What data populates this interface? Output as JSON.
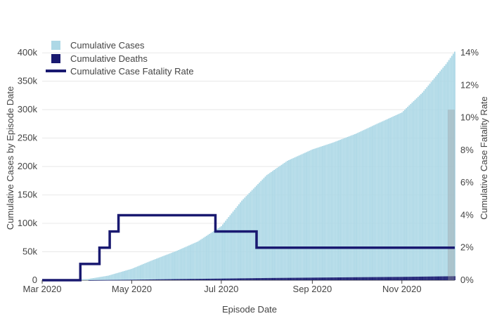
{
  "chart_data": {
    "type": "bar",
    "xlabel": "Episode Date",
    "ylabel_left": "Cumulative Cases by Episode Date",
    "ylabel_right": "Cumulative Case Fatality Rate",
    "x_range": [
      "2020-03-01",
      "2020-12-07"
    ],
    "x_ticks": [
      {
        "date": "2020-03-01",
        "label": "Mar 2020"
      },
      {
        "date": "2020-05-01",
        "label": "May 2020"
      },
      {
        "date": "2020-07-01",
        "label": "Jul 2020"
      },
      {
        "date": "2020-09-01",
        "label": "Sep 2020"
      },
      {
        "date": "2020-11-01",
        "label": "Nov 2020"
      }
    ],
    "y_left_range": [
      0,
      420000
    ],
    "y_left_ticks": [
      {
        "value": 0,
        "label": "0"
      },
      {
        "value": 50000,
        "label": "50k"
      },
      {
        "value": 100000,
        "label": "100k"
      },
      {
        "value": 150000,
        "label": "150k"
      },
      {
        "value": 200000,
        "label": "200k"
      },
      {
        "value": 250000,
        "label": "250k"
      },
      {
        "value": 300000,
        "label": "300k"
      },
      {
        "value": 350000,
        "label": "350k"
      },
      {
        "value": 400000,
        "label": "400k"
      }
    ],
    "y_right_range": [
      0,
      14.7
    ],
    "y_right_ticks": [
      {
        "value": 0,
        "label": "0%"
      },
      {
        "value": 2,
        "label": "2%"
      },
      {
        "value": 4,
        "label": "4%"
      },
      {
        "value": 6,
        "label": "6%"
      },
      {
        "value": 8,
        "label": "8%"
      },
      {
        "value": 10,
        "label": "10%"
      },
      {
        "value": 12,
        "label": "12%"
      },
      {
        "value": 14,
        "label": "14%"
      }
    ],
    "legend": {
      "placement": "top-left",
      "entries": [
        "Cumulative Cases",
        "Cumulative Deaths",
        "Cumulative Case Fatality Rate"
      ]
    },
    "series": [
      {
        "name": "Cumulative Cases",
        "kind": "bar",
        "color": "#add8e6",
        "points": [
          [
            "2020-03-01",
            0
          ],
          [
            "2020-04-01",
            2000
          ],
          [
            "2020-04-15",
            8000
          ],
          [
            "2020-05-01",
            20000
          ],
          [
            "2020-05-15",
            35000
          ],
          [
            "2020-06-01",
            52000
          ],
          [
            "2020-06-15",
            68000
          ],
          [
            "2020-07-01",
            95000
          ],
          [
            "2020-07-15",
            140000
          ],
          [
            "2020-08-01",
            185000
          ],
          [
            "2020-08-15",
            210000
          ],
          [
            "2020-09-01",
            230000
          ],
          [
            "2020-09-15",
            242000
          ],
          [
            "2020-10-01",
            258000
          ],
          [
            "2020-10-15",
            275000
          ],
          [
            "2020-11-01",
            295000
          ],
          [
            "2020-11-15",
            330000
          ],
          [
            "2020-12-01",
            380000
          ],
          [
            "2020-12-07",
            402000
          ]
        ]
      },
      {
        "name": "Cumulative Deaths",
        "kind": "bar",
        "color": "#191970",
        "points": [
          [
            "2020-03-01",
            0
          ],
          [
            "2020-04-01",
            0
          ],
          [
            "2020-05-01",
            800
          ],
          [
            "2020-06-01",
            2000
          ],
          [
            "2020-07-01",
            2800
          ],
          [
            "2020-08-01",
            3800
          ],
          [
            "2020-09-01",
            4500
          ],
          [
            "2020-10-01",
            5200
          ],
          [
            "2020-11-01",
            5800
          ],
          [
            "2020-12-07",
            7000
          ]
        ]
      },
      {
        "name": "Cumulative Case Fatality Rate",
        "kind": "step-line",
        "axis": "right",
        "color": "#191970",
        "points": [
          [
            "2020-03-01",
            0
          ],
          [
            "2020-03-27",
            0
          ],
          [
            "2020-03-27",
            1
          ],
          [
            "2020-04-09",
            1
          ],
          [
            "2020-04-09",
            2
          ],
          [
            "2020-04-16",
            2
          ],
          [
            "2020-04-16",
            3
          ],
          [
            "2020-04-22",
            3
          ],
          [
            "2020-04-22",
            4
          ],
          [
            "2020-06-27",
            4
          ],
          [
            "2020-06-27",
            3
          ],
          [
            "2020-07-25",
            3
          ],
          [
            "2020-07-25",
            2
          ],
          [
            "2020-12-07",
            2
          ]
        ]
      }
    ]
  }
}
